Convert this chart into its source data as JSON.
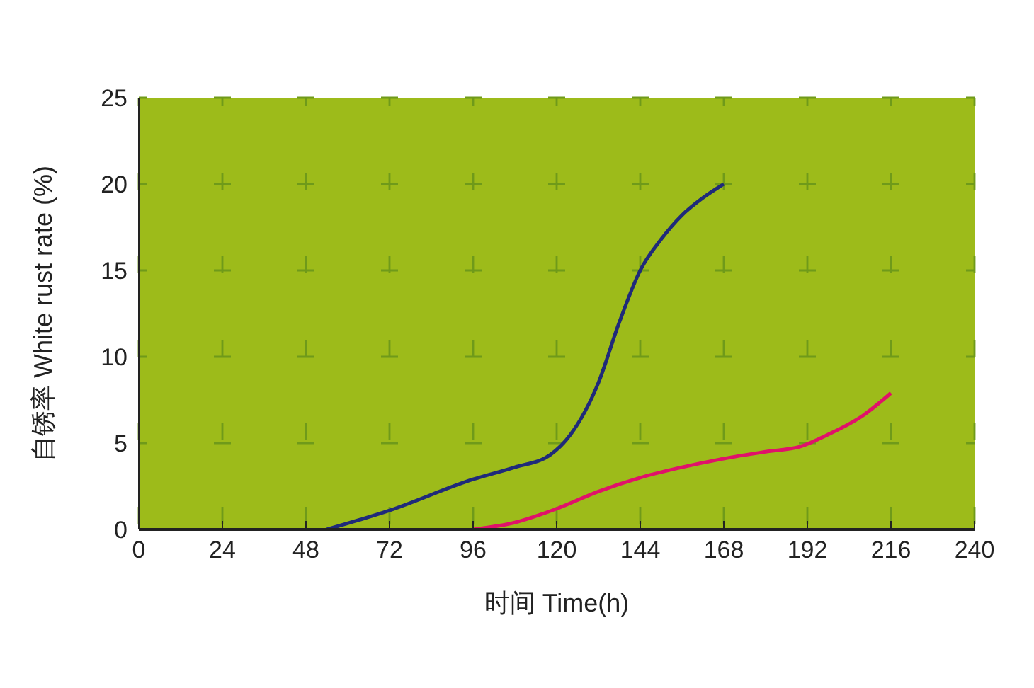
{
  "chart_data": {
    "type": "line",
    "xlabel": "时间  Time(h)",
    "ylabel": "自锈率  White rust rate (%)",
    "xlim": [
      0,
      240
    ],
    "xticks": [
      0,
      24,
      48,
      72,
      96,
      120,
      144,
      168,
      192,
      216,
      240
    ],
    "ylim": [
      0,
      25
    ],
    "yticks": [
      0,
      5,
      10,
      15,
      20,
      25
    ],
    "grid": true,
    "marker": "none",
    "line_style": "solid",
    "series": [
      {
        "color": "#1f2a7a",
        "x": [
          54,
          72,
          96,
          108,
          118,
          124,
          132,
          138,
          144,
          150,
          156,
          162,
          168
        ],
        "values": [
          0,
          1.1,
          2.9,
          3.6,
          4.3,
          5.5,
          8.5,
          12,
          15,
          16.8,
          18.2,
          19.2,
          20
        ]
      },
      {
        "color": "#e0126a",
        "x": [
          96,
          108,
          120,
          132,
          144,
          156,
          168,
          180,
          190,
          198,
          208,
          216
        ],
        "values": [
          0,
          0.4,
          1.2,
          2.2,
          3,
          3.6,
          4.1,
          4.5,
          4.8,
          5.5,
          6.6,
          7.9
        ]
      }
    ]
  }
}
